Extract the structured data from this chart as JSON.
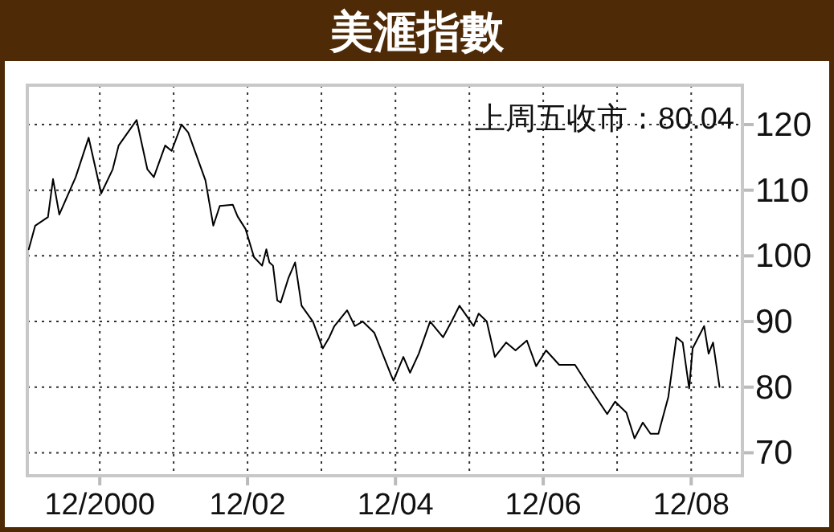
{
  "chart_data": {
    "type": "line",
    "title": "美滙指數",
    "annotations": [
      "上周五收市：80.04"
    ],
    "x": [
      "1999-12-16",
      "2000-01-17",
      "2000-03-20",
      "2000-04-14",
      "2000-05-15",
      "2000-08-04",
      "2000-10-07",
      "2000-12-08",
      "2001-02-03",
      "2001-03-04",
      "2001-06-01",
      "2001-07-24",
      "2001-08-25",
      "2001-10-20",
      "2001-11-21",
      "2002-01-09",
      "2002-02-11",
      "2002-05-07",
      "2002-06-15",
      "2002-07-17",
      "2002-09-19",
      "2002-10-13",
      "2002-11-21",
      "2003-01-02",
      "2003-02-11",
      "2003-03-04",
      "2003-03-19",
      "2003-04-06",
      "2003-04-27",
      "2003-05-14",
      "2003-06-22",
      "2003-07-24",
      "2003-08-25",
      "2003-10-20",
      "2003-12-08",
      "2004-01-09",
      "2004-02-03",
      "2004-04-06",
      "2004-05-14",
      "2004-06-22",
      "2004-08-18",
      "2004-11-07",
      "2004-11-21",
      "2005-01-09",
      "2005-02-11",
      "2005-03-26",
      "2005-05-21",
      "2005-07-24",
      "2005-09-04",
      "2005-10-13",
      "2005-11-21",
      "2005-12-22",
      "2006-01-16",
      "2006-02-25",
      "2006-04-06",
      "2006-06-01",
      "2006-07-17",
      "2006-09-11",
      "2006-10-27",
      "2006-12-15",
      "2007-02-18",
      "2007-05-07",
      "2007-07-02",
      "2007-08-18",
      "2007-10-13",
      "2007-11-21",
      "2008-01-16",
      "2008-02-25",
      "2008-04-06",
      "2008-05-14",
      "2008-06-22",
      "2008-08-10",
      "2008-09-19",
      "2008-10-20",
      "2008-11-21",
      "2008-12-08",
      "2009-02-03",
      "2009-02-25",
      "2009-03-19",
      "2009-04-20"
    ],
    "series": [
      {
        "color": "#000000",
        "values": [
          101,
          104.6,
          105.9,
          111.7,
          106.3,
          112,
          118,
          109.5,
          113.2,
          116.8,
          120.7,
          113.2,
          112,
          116.8,
          116,
          120,
          118.8,
          111.5,
          104.6,
          107.6,
          107.8,
          106,
          104.1,
          99.8,
          98.5,
          101,
          99,
          98.5,
          93.2,
          92.9,
          96.7,
          99,
          92.4,
          90,
          85.9,
          87.6,
          89.3,
          91.7,
          89.3,
          90,
          88.3,
          82,
          81,
          84.6,
          82.2,
          85.1,
          90,
          87.6,
          90,
          92.4,
          90.7,
          89.3,
          91.2,
          90,
          84.6,
          86.8,
          85.6,
          87.1,
          83.2,
          85.6,
          83.4,
          83.4,
          80.7,
          78.5,
          75.9,
          77.8,
          76.1,
          72.2,
          74.6,
          72.9,
          72.9,
          78.5,
          87.6,
          86.8,
          79.8,
          85.9,
          89.3,
          85.1,
          86.8,
          80.04
        ]
      }
    ],
    "xlim": [
      "1999-12-09",
      "2009-08-11"
    ],
    "xticks": [
      {
        "value": "2000-12",
        "label": "12/2000"
      },
      {
        "value": "2001-12",
        "label": null
      },
      {
        "value": "2002-12",
        "label": "12/02"
      },
      {
        "value": "2003-12",
        "label": null
      },
      {
        "value": "2004-12",
        "label": "12/04"
      },
      {
        "value": "2005-12",
        "label": null
      },
      {
        "value": "2006-12",
        "label": "12/06"
      },
      {
        "value": "2007-12",
        "label": null
      },
      {
        "value": "2008-12",
        "label": "12/08"
      }
    ],
    "ylim": [
      66.5,
      126
    ],
    "yticks": [
      70,
      80,
      90,
      100,
      110,
      120
    ],
    "grid": true,
    "marker": "none",
    "line_style": "solid"
  }
}
